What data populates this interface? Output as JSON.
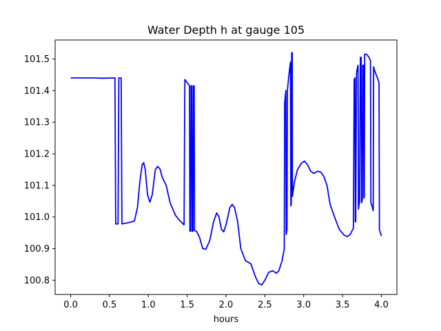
{
  "chart_data": {
    "type": "line",
    "title": "Water Depth h at gauge 105",
    "xlabel": "hours",
    "ylabel": "",
    "xlim": [
      -0.2,
      4.2
    ],
    "ylim": [
      100.755,
      101.56
    ],
    "x_ticks": [
      0.0,
      0.5,
      1.0,
      1.5,
      2.0,
      2.5,
      3.0,
      3.5,
      4.0
    ],
    "x_tick_labels": [
      "0.0",
      "0.5",
      "1.0",
      "1.5",
      "2.0",
      "2.5",
      "3.0",
      "3.5",
      "4.0"
    ],
    "y_ticks": [
      100.8,
      100.9,
      101.0,
      101.1,
      101.2,
      101.3,
      101.4,
      101.5
    ],
    "y_tick_labels": [
      "100.8",
      "100.9",
      "101.0",
      "101.1",
      "101.2",
      "101.3",
      "101.4",
      "101.5"
    ],
    "grid": false,
    "legend": "none",
    "series": [
      {
        "color": "#0000ff",
        "points": [
          [
            0.0,
            101.44
          ],
          [
            0.3,
            101.44
          ],
          [
            0.4,
            101.439
          ],
          [
            0.57,
            101.44
          ],
          [
            0.58,
            100.978
          ],
          [
            0.61,
            100.978
          ],
          [
            0.62,
            101.44
          ],
          [
            0.65,
            101.44
          ],
          [
            0.66,
            100.978
          ],
          [
            0.74,
            100.982
          ],
          [
            0.82,
            100.987
          ],
          [
            0.86,
            101.03
          ],
          [
            0.89,
            101.11
          ],
          [
            0.92,
            101.165
          ],
          [
            0.94,
            101.172
          ],
          [
            0.96,
            101.15
          ],
          [
            0.99,
            101.07
          ],
          [
            1.02,
            101.047
          ],
          [
            1.05,
            101.07
          ],
          [
            1.09,
            101.15
          ],
          [
            1.12,
            101.16
          ],
          [
            1.15,
            101.152
          ],
          [
            1.18,
            101.125
          ],
          [
            1.23,
            101.1
          ],
          [
            1.28,
            101.045
          ],
          [
            1.35,
            101.005
          ],
          [
            1.4,
            100.99
          ],
          [
            1.46,
            100.975
          ],
          [
            1.47,
            101.435
          ],
          [
            1.5,
            101.425
          ],
          [
            1.53,
            101.415
          ],
          [
            1.535,
            100.955
          ],
          [
            1.545,
            100.955
          ],
          [
            1.55,
            101.415
          ],
          [
            1.56,
            101.415
          ],
          [
            1.565,
            100.955
          ],
          [
            1.575,
            100.955
          ],
          [
            1.58,
            101.415
          ],
          [
            1.59,
            101.415
          ],
          [
            1.595,
            100.957
          ],
          [
            1.62,
            100.955
          ],
          [
            1.66,
            100.935
          ],
          [
            1.7,
            100.9
          ],
          [
            1.74,
            100.898
          ],
          [
            1.79,
            100.925
          ],
          [
            1.84,
            100.985
          ],
          [
            1.88,
            101.013
          ],
          [
            1.91,
            101.0
          ],
          [
            1.94,
            100.962
          ],
          [
            1.97,
            100.953
          ],
          [
            2.0,
            100.975
          ],
          [
            2.05,
            101.03
          ],
          [
            2.08,
            101.04
          ],
          [
            2.11,
            101.03
          ],
          [
            2.15,
            100.985
          ],
          [
            2.19,
            100.9
          ],
          [
            2.25,
            100.862
          ],
          [
            2.32,
            100.852
          ],
          [
            2.38,
            100.81
          ],
          [
            2.42,
            100.79
          ],
          [
            2.46,
            100.785
          ],
          [
            2.5,
            100.8
          ],
          [
            2.55,
            100.825
          ],
          [
            2.6,
            100.83
          ],
          [
            2.65,
            100.822
          ],
          [
            2.68,
            100.83
          ],
          [
            2.72,
            100.86
          ],
          [
            2.75,
            100.9
          ],
          [
            2.755,
            101.36
          ],
          [
            2.77,
            101.4
          ],
          [
            2.775,
            100.945
          ],
          [
            2.785,
            100.96
          ],
          [
            2.79,
            101.4
          ],
          [
            2.81,
            101.45
          ],
          [
            2.83,
            101.49
          ],
          [
            2.835,
            101.035
          ],
          [
            2.84,
            101.04
          ],
          [
            2.845,
            101.52
          ],
          [
            2.853,
            101.52
          ],
          [
            2.855,
            101.065
          ],
          [
            2.88,
            101.11
          ],
          [
            2.92,
            101.15
          ],
          [
            2.97,
            101.17
          ],
          [
            3.01,
            101.177
          ],
          [
            3.05,
            101.165
          ],
          [
            3.09,
            101.145
          ],
          [
            3.13,
            101.138
          ],
          [
            3.18,
            101.145
          ],
          [
            3.22,
            101.142
          ],
          [
            3.26,
            101.128
          ],
          [
            3.3,
            101.1
          ],
          [
            3.34,
            101.04
          ],
          [
            3.4,
            100.998
          ],
          [
            3.46,
            100.96
          ],
          [
            3.52,
            100.943
          ],
          [
            3.56,
            100.938
          ],
          [
            3.6,
            100.945
          ],
          [
            3.64,
            100.965
          ],
          [
            3.65,
            101.435
          ],
          [
            3.66,
            101.44
          ],
          [
            3.665,
            100.985
          ],
          [
            3.67,
            100.985
          ],
          [
            3.68,
            101.455
          ],
          [
            3.69,
            101.47
          ],
          [
            3.7,
            101.48
          ],
          [
            3.705,
            101.025
          ],
          [
            3.72,
            101.05
          ],
          [
            3.73,
            101.505
          ],
          [
            3.74,
            101.505
          ],
          [
            3.745,
            101.045
          ],
          [
            3.755,
            101.055
          ],
          [
            3.76,
            101.48
          ],
          [
            3.77,
            101.48
          ],
          [
            3.775,
            101.06
          ],
          [
            3.78,
            101.065
          ],
          [
            3.785,
            101.515
          ],
          [
            3.81,
            101.515
          ],
          [
            3.84,
            101.505
          ],
          [
            3.86,
            101.495
          ],
          [
            3.865,
            101.045
          ],
          [
            3.88,
            101.035
          ],
          [
            3.895,
            101.02
          ],
          [
            3.9,
            101.475
          ],
          [
            3.92,
            101.458
          ],
          [
            3.95,
            101.44
          ],
          [
            3.97,
            101.425
          ],
          [
            3.975,
            100.96
          ],
          [
            4.0,
            100.94
          ]
        ]
      }
    ]
  }
}
